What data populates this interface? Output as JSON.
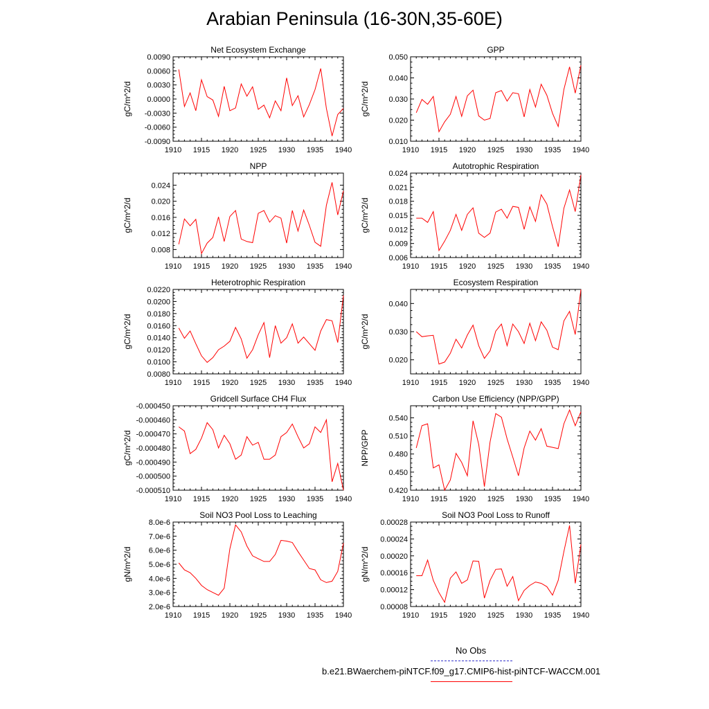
{
  "page_title": "Arabian Peninsula (16-30N,35-60E)",
  "legend": {
    "entries": [
      {
        "label": "No Obs",
        "color": "#3333cc",
        "style": "dashed"
      },
      {
        "label": "b.e21.BWaerchem-piNTCF.f09_g17.CMIP6-hist-piNTCF-WACCM.001",
        "color": "#ff0000",
        "style": "solid"
      }
    ]
  },
  "series_color": "#ff0000",
  "chart_data": [
    {
      "type": "line",
      "title": "Net Ecosystem Exchange",
      "ylabel": "gC/m^2/d",
      "xlim": [
        1910,
        1940
      ],
      "ylim": [
        -0.009,
        0.009
      ],
      "xticks": [
        1910,
        1915,
        1920,
        1925,
        1930,
        1935,
        1940
      ],
      "xtick_labels": [
        "1910",
        "1915",
        "1920",
        "1925",
        "1930",
        "1935",
        "1940"
      ],
      "yticks": [
        -0.009,
        -0.006,
        -0.003,
        0.0,
        0.003,
        0.006,
        0.009
      ],
      "ytick_labels": [
        "-0.0090",
        "-0.0060",
        "-0.0030",
        "0.0000",
        "0.0030",
        "0.0060",
        "0.0090"
      ],
      "x": [
        1911,
        1912,
        1913,
        1914,
        1915,
        1916,
        1917,
        1918,
        1919,
        1920,
        1921,
        1922,
        1923,
        1924,
        1925,
        1926,
        1927,
        1928,
        1929,
        1930,
        1931,
        1932,
        1933,
        1934,
        1935,
        1936,
        1937,
        1938,
        1939,
        1940
      ],
      "values": [
        0.0063,
        -0.0016,
        0.0013,
        -0.0025,
        0.0041,
        0.0005,
        -0.0002,
        -0.0037,
        0.0027,
        -0.0025,
        -0.0019,
        0.0032,
        0.0006,
        0.0026,
        -0.0022,
        -0.0013,
        -0.004,
        -0.0004,
        -0.0025,
        0.0045,
        -0.0014,
        0.0007,
        -0.0038,
        -0.0012,
        0.002,
        0.0065,
        -0.002,
        -0.0079,
        -0.0033,
        -0.002
      ]
    },
    {
      "type": "line",
      "title": "GPP",
      "ylabel": "gC/m^2/d",
      "xlim": [
        1910,
        1940
      ],
      "ylim": [
        0.01,
        0.05
      ],
      "xticks": [
        1910,
        1915,
        1920,
        1925,
        1930,
        1935,
        1940
      ],
      "xtick_labels": [
        "1910",
        "1915",
        "1920",
        "1925",
        "1930",
        "1935",
        "1940"
      ],
      "yticks": [
        0.01,
        0.02,
        0.03,
        0.04,
        0.05
      ],
      "ytick_labels": [
        "0.010",
        "0.020",
        "0.030",
        "0.040",
        "0.050"
      ],
      "x": [
        1911,
        1912,
        1913,
        1914,
        1915,
        1916,
        1917,
        1918,
        1919,
        1920,
        1921,
        1922,
        1923,
        1924,
        1925,
        1926,
        1927,
        1928,
        1929,
        1930,
        1931,
        1932,
        1933,
        1934,
        1935,
        1936,
        1937,
        1938,
        1939,
        1940
      ],
      "values": [
        0.0235,
        0.0298,
        0.0275,
        0.0312,
        0.0145,
        0.0192,
        0.0228,
        0.0312,
        0.0218,
        0.0315,
        0.0342,
        0.022,
        0.02,
        0.0208,
        0.033,
        0.034,
        0.029,
        0.033,
        0.0325,
        0.0215,
        0.0345,
        0.0262,
        0.037,
        0.0318,
        0.0232,
        0.017,
        0.0345,
        0.0452,
        0.0328,
        0.046
      ]
    },
    {
      "type": "line",
      "title": "NPP",
      "ylabel": "gC/m^2/d",
      "xlim": [
        1910,
        1940
      ],
      "ylim": [
        0.006,
        0.027
      ],
      "xticks": [
        1910,
        1915,
        1920,
        1925,
        1930,
        1935,
        1940
      ],
      "xtick_labels": [
        "1910",
        "1915",
        "1920",
        "1925",
        "1930",
        "1935",
        "1940"
      ],
      "yticks": [
        0.008,
        0.012,
        0.016,
        0.02,
        0.024
      ],
      "ytick_labels": [
        "0.008",
        "0.012",
        "0.016",
        "0.020",
        "0.024"
      ],
      "x": [
        1911,
        1912,
        1913,
        1914,
        1915,
        1916,
        1917,
        1918,
        1919,
        1920,
        1921,
        1922,
        1923,
        1924,
        1925,
        1926,
        1927,
        1928,
        1929,
        1930,
        1931,
        1932,
        1933,
        1934,
        1935,
        1936,
        1937,
        1938,
        1939,
        1940
      ],
      "values": [
        0.0093,
        0.0156,
        0.0139,
        0.0155,
        0.007,
        0.0096,
        0.011,
        0.0161,
        0.01,
        0.0162,
        0.0177,
        0.0106,
        0.01,
        0.0097,
        0.017,
        0.0177,
        0.0148,
        0.0164,
        0.0158,
        0.0096,
        0.0177,
        0.0126,
        0.0178,
        0.014,
        0.0098,
        0.0088,
        0.019,
        0.0247,
        0.0166,
        0.0226
      ]
    },
    {
      "type": "line",
      "title": "Autotrophic Respiration",
      "ylabel": "gC/m^2/d",
      "xlim": [
        1910,
        1940
      ],
      "ylim": [
        0.006,
        0.024
      ],
      "xticks": [
        1910,
        1915,
        1920,
        1925,
        1930,
        1935,
        1940
      ],
      "xtick_labels": [
        "1910",
        "1915",
        "1920",
        "1925",
        "1930",
        "1935",
        "1940"
      ],
      "yticks": [
        0.006,
        0.009,
        0.012,
        0.015,
        0.018,
        0.021,
        0.024
      ],
      "ytick_labels": [
        "0.006",
        "0.009",
        "0.012",
        "0.015",
        "0.018",
        "0.021",
        "0.024"
      ],
      "x": [
        1911,
        1912,
        1913,
        1914,
        1915,
        1916,
        1917,
        1918,
        1919,
        1920,
        1921,
        1922,
        1923,
        1924,
        1925,
        1926,
        1927,
        1928,
        1929,
        1930,
        1931,
        1932,
        1933,
        1934,
        1935,
        1936,
        1937,
        1938,
        1939,
        1940
      ],
      "values": [
        0.0144,
        0.0144,
        0.0135,
        0.0158,
        0.0075,
        0.0095,
        0.0118,
        0.0152,
        0.0118,
        0.0152,
        0.0166,
        0.0112,
        0.0103,
        0.0112,
        0.0157,
        0.0163,
        0.0144,
        0.0169,
        0.0167,
        0.012,
        0.0168,
        0.0137,
        0.0194,
        0.0174,
        0.0126,
        0.0083,
        0.0165,
        0.0204,
        0.0158,
        0.0236
      ]
    },
    {
      "type": "line",
      "title": "Heterotrophic Respiration",
      "ylabel": "gC/m^2/d",
      "xlim": [
        1910,
        1940
      ],
      "ylim": [
        0.008,
        0.022
      ],
      "xticks": [
        1910,
        1915,
        1920,
        1925,
        1930,
        1935,
        1940
      ],
      "xtick_labels": [
        "1910",
        "1915",
        "1920",
        "1925",
        "1930",
        "1935",
        "1940"
      ],
      "yticks": [
        0.008,
        0.01,
        0.012,
        0.014,
        0.016,
        0.018,
        0.02,
        0.022
      ],
      "ytick_labels": [
        "0.0080",
        "0.0100",
        "0.0120",
        "0.0140",
        "0.0160",
        "0.0180",
        "0.0200",
        "0.0220"
      ],
      "x": [
        1911,
        1912,
        1913,
        1914,
        1915,
        1916,
        1917,
        1918,
        1919,
        1920,
        1921,
        1922,
        1923,
        1924,
        1925,
        1926,
        1927,
        1928,
        1929,
        1930,
        1931,
        1932,
        1933,
        1934,
        1935,
        1936,
        1937,
        1938,
        1939,
        1940
      ],
      "values": [
        0.0156,
        0.0139,
        0.0151,
        0.013,
        0.011,
        0.0099,
        0.0107,
        0.012,
        0.0126,
        0.0134,
        0.0157,
        0.0138,
        0.0106,
        0.012,
        0.0145,
        0.0165,
        0.0107,
        0.016,
        0.0131,
        0.014,
        0.0163,
        0.0131,
        0.0141,
        0.013,
        0.0119,
        0.0151,
        0.017,
        0.0168,
        0.0132,
        0.021
      ]
    },
    {
      "type": "line",
      "title": "Ecosystem Respiration",
      "ylabel": "gC/m^2/d",
      "xlim": [
        1910,
        1940
      ],
      "ylim": [
        0.015,
        0.045
      ],
      "xticks": [
        1910,
        1915,
        1920,
        1925,
        1930,
        1935,
        1940
      ],
      "xtick_labels": [
        "1910",
        "1915",
        "1920",
        "1925",
        "1930",
        "1935",
        "1940"
      ],
      "yticks": [
        0.02,
        0.03,
        0.04
      ],
      "ytick_labels": [
        "0.020",
        "0.030",
        "0.040"
      ],
      "x": [
        1911,
        1912,
        1913,
        1914,
        1915,
        1916,
        1917,
        1918,
        1919,
        1920,
        1921,
        1922,
        1923,
        1924,
        1925,
        1926,
        1927,
        1928,
        1929,
        1930,
        1931,
        1932,
        1933,
        1934,
        1935,
        1936,
        1937,
        1938,
        1939,
        1940
      ],
      "values": [
        0.03,
        0.0282,
        0.0285,
        0.0287,
        0.0185,
        0.0192,
        0.0223,
        0.0273,
        0.0242,
        0.0288,
        0.0323,
        0.025,
        0.0205,
        0.0232,
        0.0302,
        0.0327,
        0.025,
        0.0327,
        0.03,
        0.0258,
        0.033,
        0.0268,
        0.0335,
        0.0305,
        0.0245,
        0.0236,
        0.0338,
        0.0372,
        0.029,
        0.045
      ]
    },
    {
      "type": "line",
      "title": "Gridcell Surface CH4 Flux",
      "ylabel": "gC/m^2/d",
      "xlim": [
        1910,
        1940
      ],
      "ylim": [
        -0.00051,
        -0.00045
      ],
      "xticks": [
        1910,
        1915,
        1920,
        1925,
        1930,
        1935,
        1940
      ],
      "xtick_labels": [
        "1910",
        "1915",
        "1920",
        "1925",
        "1930",
        "1935",
        "1940"
      ],
      "yticks": [
        -0.00051,
        -0.0005,
        -0.00049,
        -0.00048,
        -0.00047,
        -0.00046,
        -0.00045
      ],
      "ytick_labels": [
        "-0.000510",
        "-0.000500",
        "-0.000490",
        "-0.000480",
        "-0.000470",
        "-0.000460",
        "-0.000450"
      ],
      "x": [
        1911,
        1912,
        1913,
        1914,
        1915,
        1916,
        1917,
        1918,
        1919,
        1920,
        1921,
        1922,
        1923,
        1924,
        1925,
        1926,
        1927,
        1928,
        1929,
        1930,
        1931,
        1932,
        1933,
        1934,
        1935,
        1936,
        1937,
        1938,
        1939,
        1940
      ],
      "values": [
        -0.000465,
        -0.000468,
        -0.000484,
        -0.000481,
        -0.000473,
        -0.000462,
        -0.000467,
        -0.00048,
        -0.000471,
        -0.000477,
        -0.000488,
        -0.000485,
        -0.000472,
        -0.000478,
        -0.000476,
        -0.000488,
        -0.000488,
        -0.000485,
        -0.000472,
        -0.000469,
        -0.000463,
        -0.000472,
        -0.00048,
        -0.000477,
        -0.000465,
        -0.000469,
        -0.00046,
        -0.000504,
        -0.000491,
        -0.00051
      ]
    },
    {
      "type": "line",
      "title": "Carbon Use Efficiency (NPP/GPP)",
      "ylabel": "NPP/GPP",
      "xlim": [
        1910,
        1940
      ],
      "ylim": [
        0.42,
        0.56
      ],
      "xticks": [
        1910,
        1915,
        1920,
        1925,
        1930,
        1935,
        1940
      ],
      "xtick_labels": [
        "1910",
        "1915",
        "1920",
        "1925",
        "1930",
        "1935",
        "1940"
      ],
      "yticks": [
        0.42,
        0.45,
        0.48,
        0.51,
        0.54
      ],
      "ytick_labels": [
        "0.420",
        "0.450",
        "0.480",
        "0.510",
        "0.540"
      ],
      "x": [
        1911,
        1912,
        1913,
        1914,
        1915,
        1916,
        1917,
        1918,
        1919,
        1920,
        1921,
        1922,
        1923,
        1924,
        1925,
        1926,
        1927,
        1928,
        1929,
        1930,
        1931,
        1932,
        1933,
        1934,
        1935,
        1936,
        1937,
        1938,
        1939,
        1940
      ],
      "values": [
        0.49,
        0.527,
        0.53,
        0.457,
        0.462,
        0.42,
        0.437,
        0.481,
        0.466,
        0.444,
        0.535,
        0.496,
        0.426,
        0.5,
        0.547,
        0.541,
        0.505,
        0.475,
        0.444,
        0.49,
        0.518,
        0.503,
        0.522,
        0.493,
        0.491,
        0.489,
        0.53,
        0.553,
        0.527,
        0.55
      ]
    },
    {
      "type": "line",
      "title": "Soil NO3 Pool Loss to Leaching",
      "ylabel": "gN/m^2/d",
      "xlim": [
        1910,
        1940
      ],
      "ylim": [
        2e-06,
        8e-06
      ],
      "xticks": [
        1910,
        1915,
        1920,
        1925,
        1930,
        1935,
        1940
      ],
      "xtick_labels": [
        "1910",
        "1915",
        "1920",
        "1925",
        "1930",
        "1935",
        "1940"
      ],
      "yticks": [
        2e-06,
        3e-06,
        4e-06,
        5e-06,
        6e-06,
        7e-06,
        8e-06
      ],
      "ytick_labels": [
        "2.0e-6",
        "3.0e-6",
        "4.0e-6",
        "5.0e-6",
        "6.0e-6",
        "7.0e-6",
        "8.0e-6"
      ],
      "x": [
        1911,
        1912,
        1913,
        1914,
        1915,
        1916,
        1917,
        1918,
        1919,
        1920,
        1921,
        1922,
        1923,
        1924,
        1925,
        1926,
        1927,
        1928,
        1929,
        1930,
        1931,
        1932,
        1933,
        1934,
        1935,
        1936,
        1937,
        1938,
        1939,
        1940
      ],
      "values": [
        5.1e-06,
        4.6e-06,
        4.4e-06,
        4e-06,
        3.5e-06,
        3.2e-06,
        3e-06,
        2.8e-06,
        3.3e-06,
        6.1e-06,
        7.8e-06,
        7.3e-06,
        6.3e-06,
        5.6e-06,
        5.4e-06,
        5.2e-06,
        5.2e-06,
        5.7e-06,
        6.7e-06,
        6.65e-06,
        6.55e-06,
        5.9e-06,
        5.3e-06,
        4.7e-06,
        4.6e-06,
        3.9e-06,
        3.7e-06,
        3.8e-06,
        4.5e-06,
        6.5e-06
      ]
    },
    {
      "type": "line",
      "title": "Soil NO3 Pool Loss to Runoff",
      "ylabel": "gN/m^2/d",
      "xlim": [
        1910,
        1940
      ],
      "ylim": [
        8e-05,
        0.00028
      ],
      "xticks": [
        1910,
        1915,
        1920,
        1925,
        1930,
        1935,
        1940
      ],
      "xtick_labels": [
        "1910",
        "1915",
        "1920",
        "1925",
        "1930",
        "1935",
        "1940"
      ],
      "yticks": [
        8e-05,
        0.00012,
        0.00016,
        0.0002,
        0.00024,
        0.00028
      ],
      "ytick_labels": [
        "0.00008",
        "0.00012",
        "0.00016",
        "0.00020",
        "0.00024",
        "0.00028"
      ],
      "x": [
        1911,
        1912,
        1913,
        1914,
        1915,
        1916,
        1917,
        1918,
        1919,
        1920,
        1921,
        1922,
        1923,
        1924,
        1925,
        1926,
        1927,
        1928,
        1929,
        1930,
        1931,
        1932,
        1933,
        1934,
        1935,
        1936,
        1937,
        1938,
        1939,
        1940
      ],
      "values": [
        0.000153,
        0.000153,
        0.00019,
        0.000142,
        0.000113,
        9e-05,
        0.000147,
        0.000162,
        0.000135,
        0.000143,
        0.000188,
        0.000187,
        0.0001,
        0.000142,
        0.000168,
        0.000169,
        0.000128,
        0.000151,
        9.4e-05,
        0.000118,
        0.00013,
        0.000138,
        0.000135,
        0.000127,
        0.000107,
        0.000142,
        0.00021,
        0.000272,
        0.000135,
        0.000227
      ]
    }
  ]
}
